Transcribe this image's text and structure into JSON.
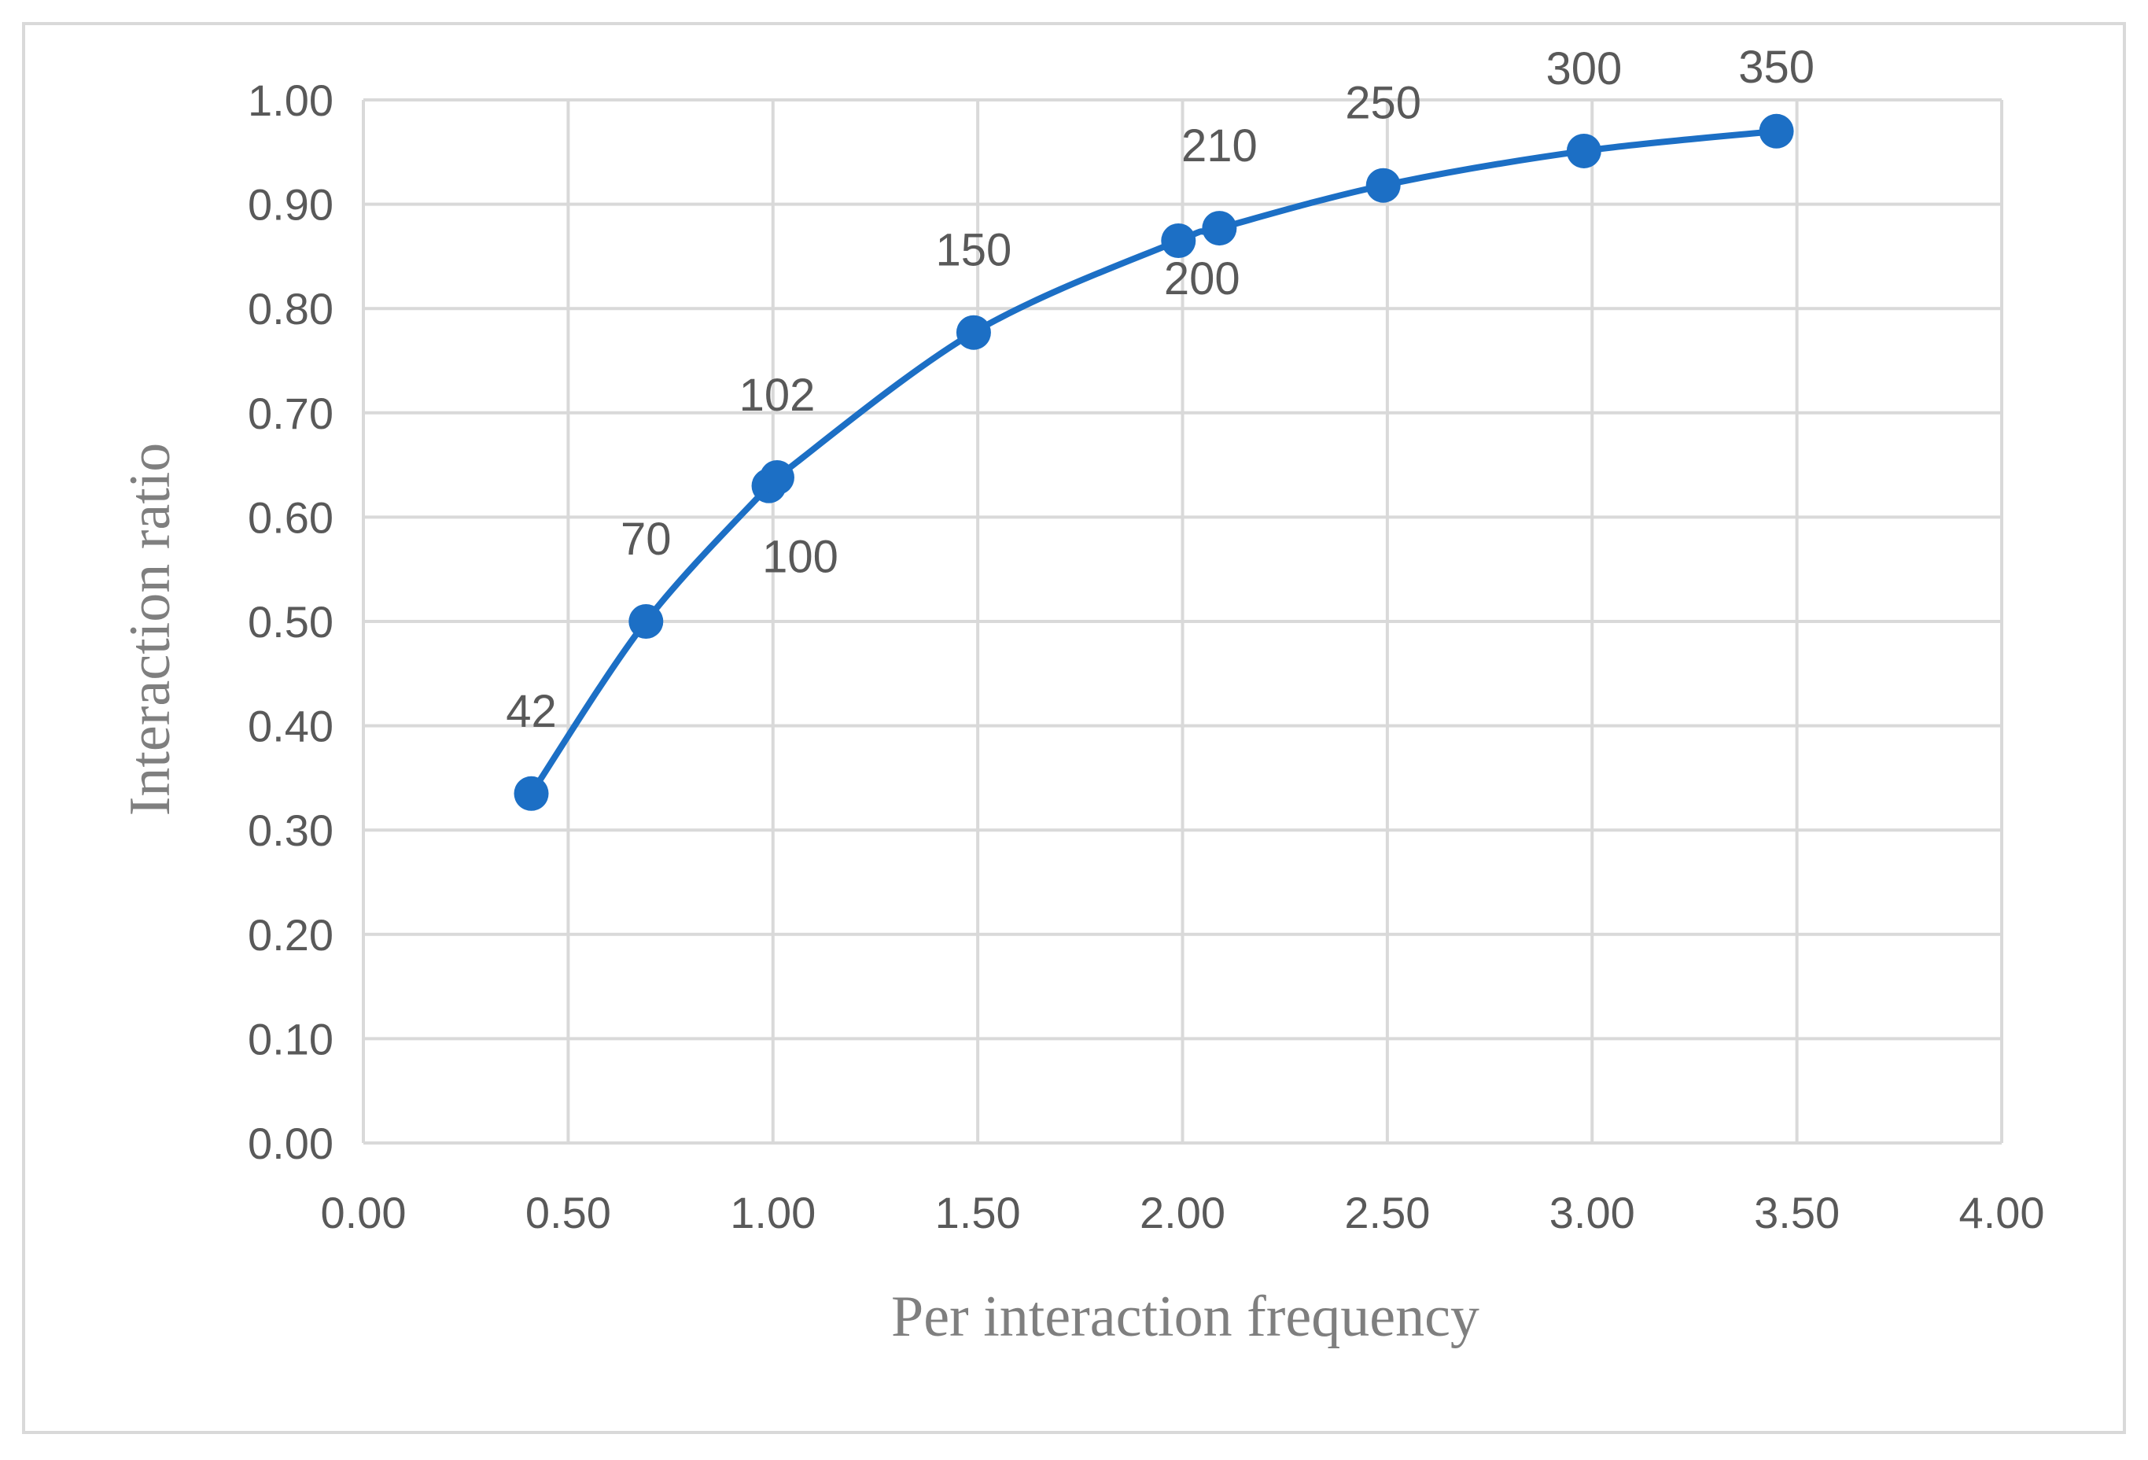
{
  "chart_data": {
    "type": "scatter",
    "title": "",
    "xlabel": "Per interaction frequency",
    "ylabel": "Interaction ratio",
    "xlim": [
      0,
      4
    ],
    "ylim": [
      0,
      1
    ],
    "x_ticks": [
      "0.00",
      "0.50",
      "1.00",
      "1.50",
      "2.00",
      "2.50",
      "3.00",
      "3.50",
      "4.00"
    ],
    "y_ticks": [
      "0.00",
      "0.10",
      "0.20",
      "0.30",
      "0.40",
      "0.50",
      "0.60",
      "0.70",
      "0.80",
      "0.90",
      "1.00"
    ],
    "grid": true,
    "legend": "none",
    "line_style": "smoothed",
    "colors": {
      "series": "#1c6fc5",
      "grid": "#d9d9d9",
      "frame": "#d9d9d9",
      "tick_text": "#595959",
      "axis_title_text": "#7f7f7f"
    },
    "series": [
      {
        "points": [
          {
            "x": 0.41,
            "y": 0.335,
            "label": "42"
          },
          {
            "x": 0.69,
            "y": 0.5,
            "label": "70"
          },
          {
            "x": 0.99,
            "y": 0.63,
            "label": "100"
          },
          {
            "x": 1.01,
            "y": 0.638,
            "label": "102"
          },
          {
            "x": 1.49,
            "y": 0.777,
            "label": "150"
          },
          {
            "x": 1.99,
            "y": 0.865,
            "label": "200"
          },
          {
            "x": 2.09,
            "y": 0.877,
            "label": "210"
          },
          {
            "x": 2.49,
            "y": 0.918,
            "label": "250"
          },
          {
            "x": 2.98,
            "y": 0.951,
            "label": "300"
          },
          {
            "x": 3.45,
            "y": 0.97,
            "label": "350"
          }
        ]
      }
    ]
  }
}
